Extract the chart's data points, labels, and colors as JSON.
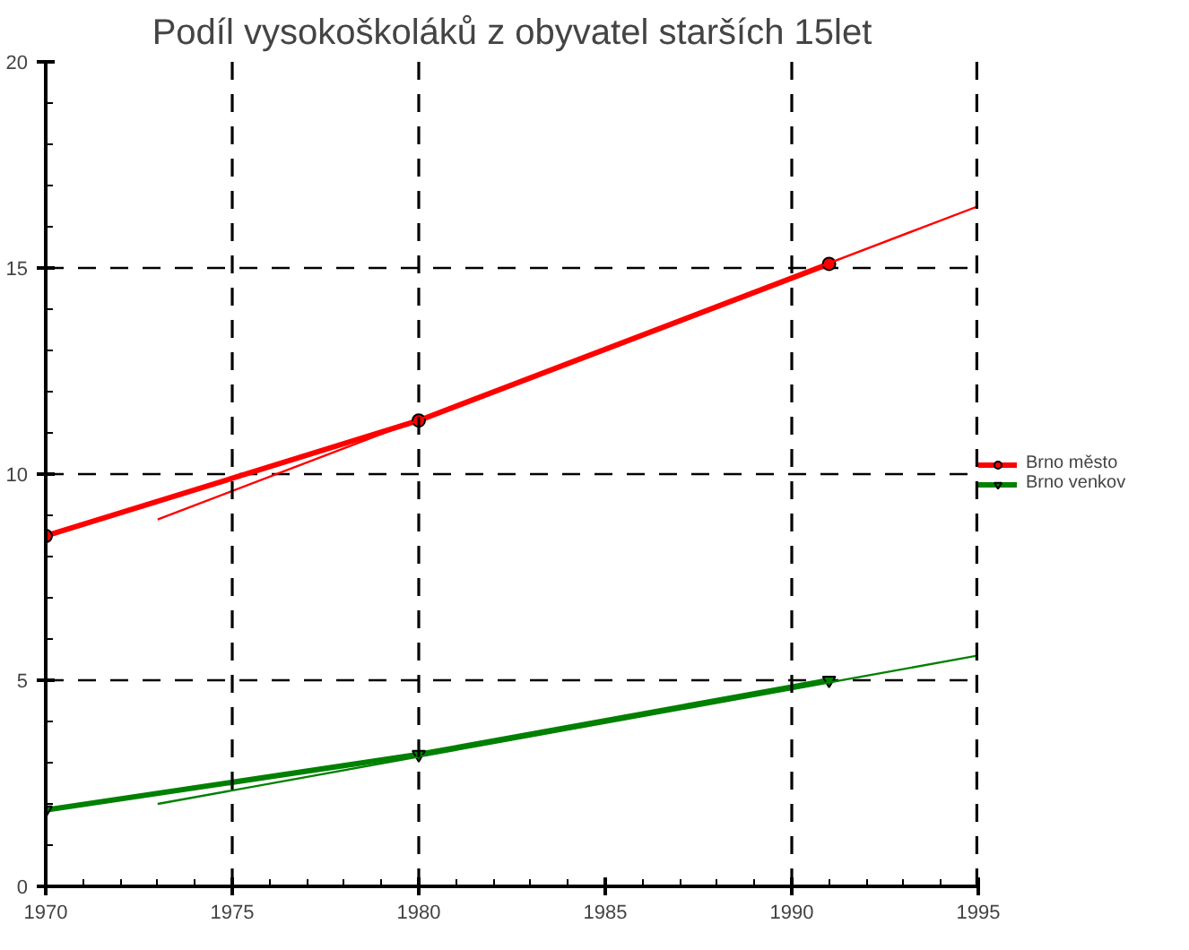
{
  "chart_data": {
    "type": "line",
    "title": "Podíl vysokoškoláků z obyvatel starších 15let",
    "xlim": [
      1970,
      1995
    ],
    "ylim": [
      0,
      20
    ],
    "xticks": [
      1970,
      {
        "value": 1971,
        "label": null
      },
      {
        "value": 1972,
        "label": null
      },
      {
        "value": 1973,
        "label": null
      },
      {
        "value": 1974,
        "label": null
      },
      1975,
      {
        "value": 1976,
        "label": null
      },
      {
        "value": 1977,
        "label": null
      },
      {
        "value": 1978,
        "label": null
      },
      {
        "value": 1979,
        "label": null
      },
      1980,
      {
        "value": 1981,
        "label": null
      },
      {
        "value": 1982,
        "label": null
      },
      {
        "value": 1983,
        "label": null
      },
      {
        "value": 1984,
        "label": null
      },
      1985,
      {
        "value": 1986,
        "label": null
      },
      {
        "value": 1987,
        "label": null
      },
      {
        "value": 1988,
        "label": null
      },
      {
        "value": 1989,
        "label": null
      },
      1990,
      {
        "value": 1991,
        "label": null
      },
      {
        "value": 1992,
        "label": null
      },
      {
        "value": 1993,
        "label": null
      },
      {
        "value": 1994,
        "label": null
      },
      1995
    ],
    "yticks": [
      0,
      {
        "value": 1,
        "label": null
      },
      {
        "value": 2,
        "label": null
      },
      {
        "value": 3,
        "label": null
      },
      {
        "value": 4,
        "label": null
      },
      5,
      {
        "value": 6,
        "label": null
      },
      {
        "value": 7,
        "label": null
      },
      {
        "value": 8,
        "label": null
      },
      {
        "value": 9,
        "label": null
      },
      10,
      {
        "value": 11,
        "label": null
      },
      {
        "value": 12,
        "label": null
      },
      {
        "value": 13,
        "label": null
      },
      {
        "value": 14,
        "label": null
      },
      15,
      {
        "value": 16,
        "label": null
      },
      {
        "value": 17,
        "label": null
      },
      {
        "value": 18,
        "label": null
      },
      {
        "value": 19,
        "label": null
      },
      20
    ],
    "grid": "y",
    "ref_lines": [
      {
        "axis": "x",
        "value": 1975,
        "line_style": "dashed"
      },
      {
        "axis": "x",
        "value": 1980,
        "line_style": "dashed"
      },
      {
        "axis": "x",
        "value": 1990,
        "line_style": "dashed"
      },
      {
        "axis": "x",
        "value": 1995,
        "line_style": "dashed"
      }
    ],
    "legend": "right",
    "series": [
      {
        "name": "Brno město",
        "color": "#ff0000",
        "marker": "circle",
        "x": [
          1970,
          1980,
          1991
        ],
        "values": [
          8.5,
          11.3,
          15.1
        ]
      },
      {
        "name": "Brno venkov",
        "color": "#008000",
        "marker": "triangle",
        "x": [
          1970,
          1980,
          1991
        ],
        "values": [
          1.85,
          3.2,
          5.0
        ]
      },
      {
        "color": "#ff0000",
        "marker": "none",
        "x": [
          1973,
          1995
        ],
        "values": [
          8.9,
          16.5
        ]
      },
      {
        "color": "#008000",
        "marker": "none",
        "x": [
          1973,
          1995
        ],
        "values": [
          2.0,
          5.6
        ]
      }
    ]
  }
}
